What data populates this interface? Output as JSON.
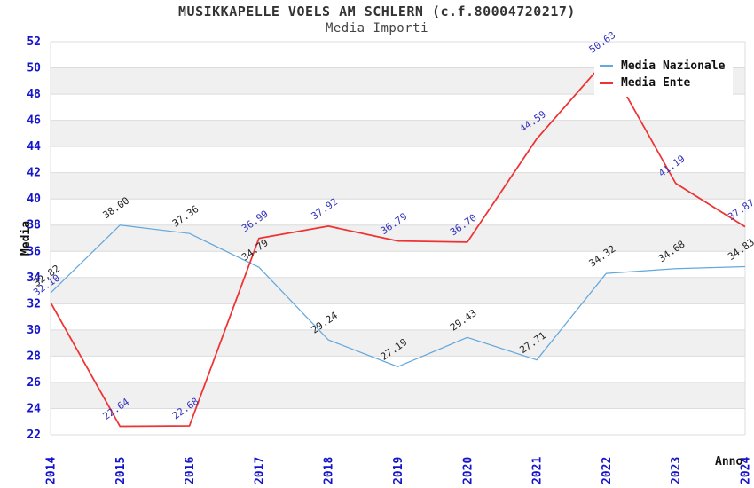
{
  "chart_data": {
    "type": "line",
    "title": "MUSIKKAPELLE VOELS AM SCHLERN (c.f.80004720217)",
    "subtitle": "Media Importi",
    "xlabel": "Anno",
    "ylabel": "Media",
    "x": [
      2014,
      2015,
      2016,
      2017,
      2018,
      2019,
      2020,
      2021,
      2022,
      2023,
      2024
    ],
    "xticklabels": [
      "2014",
      "2015",
      "2016",
      "2017",
      "2018",
      "2019",
      "2020",
      "2021",
      "2022",
      "2023",
      "2024"
    ],
    "ylim": [
      22,
      52
    ],
    "ytick_step": 2,
    "yticklabels": [
      "22",
      "24",
      "26",
      "28",
      "30",
      "32",
      "34",
      "36",
      "38",
      "40",
      "42",
      "44",
      "46",
      "48",
      "50",
      "52"
    ],
    "grid": "horizontal",
    "legend_position": "top-right",
    "series": [
      {
        "name": "Media Nazionale",
        "color": "#64a8dc",
        "label_color": "#222222",
        "line_width": 1.25,
        "values": [
          32.82,
          38.0,
          37.36,
          34.79,
          29.24,
          27.19,
          29.43,
          27.71,
          34.32,
          34.68,
          34.83
        ]
      },
      {
        "name": "Media Ente",
        "color": "#ee3333",
        "label_color": "#3333bb",
        "line_width": 1.75,
        "values": [
          32.1,
          22.64,
          22.68,
          36.99,
          37.92,
          36.79,
          36.7,
          44.59,
          50.63,
          41.19,
          37.87
        ]
      }
    ],
    "style": {
      "tick_color": "#1414cc",
      "grid_color": "#dcdcdc",
      "band_colors": [
        "#ffffff",
        "#f0f0f0"
      ],
      "axis_title_color": "#111111",
      "title_color": "#333333"
    }
  }
}
